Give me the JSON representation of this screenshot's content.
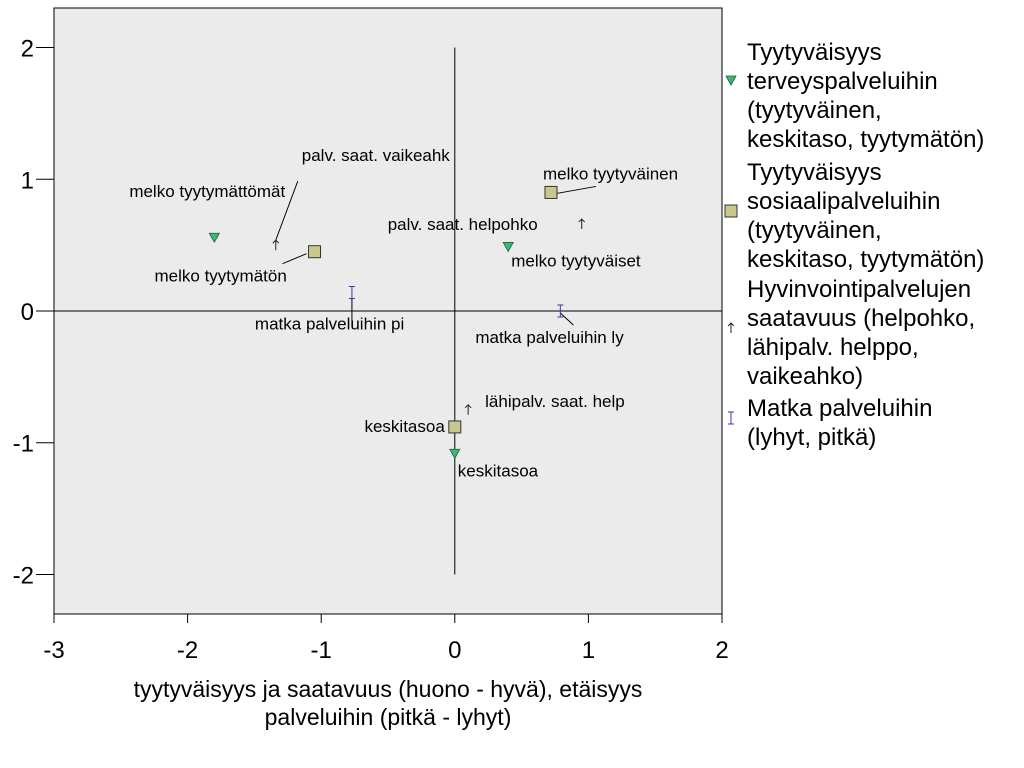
{
  "chart_data": {
    "type": "scatter",
    "title": "",
    "xlabel": [
      "tyytyväisyys ja saatavuus (huono - hyvä), etäisyys",
      "palveluihin (pitkä - lyhyt)"
    ],
    "ylabel": "",
    "xlim": [
      -3,
      2
    ],
    "ylim": [
      -2.3,
      2.3
    ],
    "xticks": [
      -3,
      -2,
      -1,
      0,
      1,
      2
    ],
    "yticks": [
      -2,
      -1,
      0,
      1,
      2
    ],
    "grid": false,
    "legend_position": "right",
    "plot_background": "#ebebeb",
    "series": [
      {
        "name": [
          "Tyytyväisyys",
          "terveyspalveluihin",
          "(tyytyväinen,",
          "keskitaso, tyytymätön)"
        ],
        "marker": "triangle",
        "color": "#3cb878",
        "points": [
          {
            "x": -1.8,
            "y": 0.56,
            "label": "melko tyytymättömät"
          },
          {
            "x": 0.4,
            "y": 0.49,
            "label": "melko tyytyväiset"
          },
          {
            "x": 0.0,
            "y": -1.08,
            "label": "keskitasoa"
          }
        ]
      },
      {
        "name": [
          "Tyytyväisyys",
          "sosiaalipalveluihin",
          "(tyytyväinen,",
          "keskitaso, tyytymätön)"
        ],
        "marker": "square",
        "color": "#c8c88c",
        "points": [
          {
            "x": -1.05,
            "y": 0.45,
            "label": "melko tyytymätön"
          },
          {
            "x": 0.72,
            "y": 0.9,
            "label": "melko tyytyväinen"
          },
          {
            "x": 0.0,
            "y": -0.88,
            "label": "keskitasoa"
          }
        ]
      },
      {
        "name": [
          "Hyvinvointipalvelujen",
          "saatavuus (helpohko,",
          "lähipalv. helppo,",
          "vaikeahko)"
        ],
        "marker": "arrow",
        "color": "#222222",
        "points": [
          {
            "x": -1.34,
            "y": 0.5,
            "label": "palv. saat. vaikeahk"
          },
          {
            "x": 0.95,
            "y": 0.66,
            "label": "palv. saat. helpohko"
          },
          {
            "x": 0.1,
            "y": -0.75,
            "label": "lähipalv. saat. help"
          }
        ]
      },
      {
        "name": [
          "Matka palveluihin",
          "(lyhyt, pitkä)"
        ],
        "marker": "ibeam",
        "color": "#3a3aa8",
        "points": [
          {
            "x": -0.77,
            "y": 0.14,
            "label": "matka palveluihin pi"
          },
          {
            "x": 0.79,
            "y": 0.0,
            "label": "matka palveluihin ly"
          }
        ]
      }
    ]
  }
}
